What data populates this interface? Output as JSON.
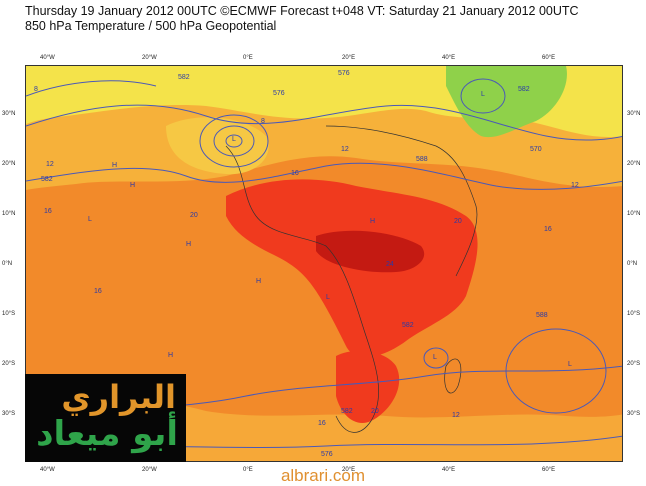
{
  "header": {
    "line1": "Thursday 19 January 2012 00UTC ©ECMWF Forecast t+048 VT: Saturday 21 January 2012 00UTC",
    "line2": "850 hPa Temperature / 500 hPa Geopotential"
  },
  "axes": {
    "longitudes": [
      "40°W",
      "20°W",
      "0°E",
      "20°E",
      "40°E",
      "60°E"
    ],
    "latitudes": [
      "30°N",
      "20°N",
      "10°N",
      "0°N",
      "10°S",
      "20°S",
      "30°S"
    ]
  },
  "map": {
    "contour_labels": [
      "582",
      "576",
      "582",
      "588",
      "576",
      "582",
      "570",
      "582",
      "588",
      "582",
      "576"
    ],
    "temp_labels": [
      "8",
      "12",
      "16",
      "20",
      "24",
      "20",
      "16",
      "16",
      "12",
      "8",
      "12",
      "16",
      "20",
      "16",
      "12"
    ],
    "pressure_marks": [
      "H",
      "H",
      "L",
      "H",
      "L",
      "H",
      "L",
      "H",
      "L",
      "L",
      "H",
      "L"
    ],
    "colors": {
      "orange": "#f28a2a",
      "light_orange": "#f6b13a",
      "yellow": "#f4e34a",
      "green": "#8fd14a",
      "red": "#f03a1e",
      "dark_red": "#c41a12",
      "contour": "#4a59b8"
    }
  },
  "watermark": {
    "line1": "البراري",
    "line2": "أبو ميعاد"
  },
  "footer": {
    "site": "albrari.com"
  }
}
